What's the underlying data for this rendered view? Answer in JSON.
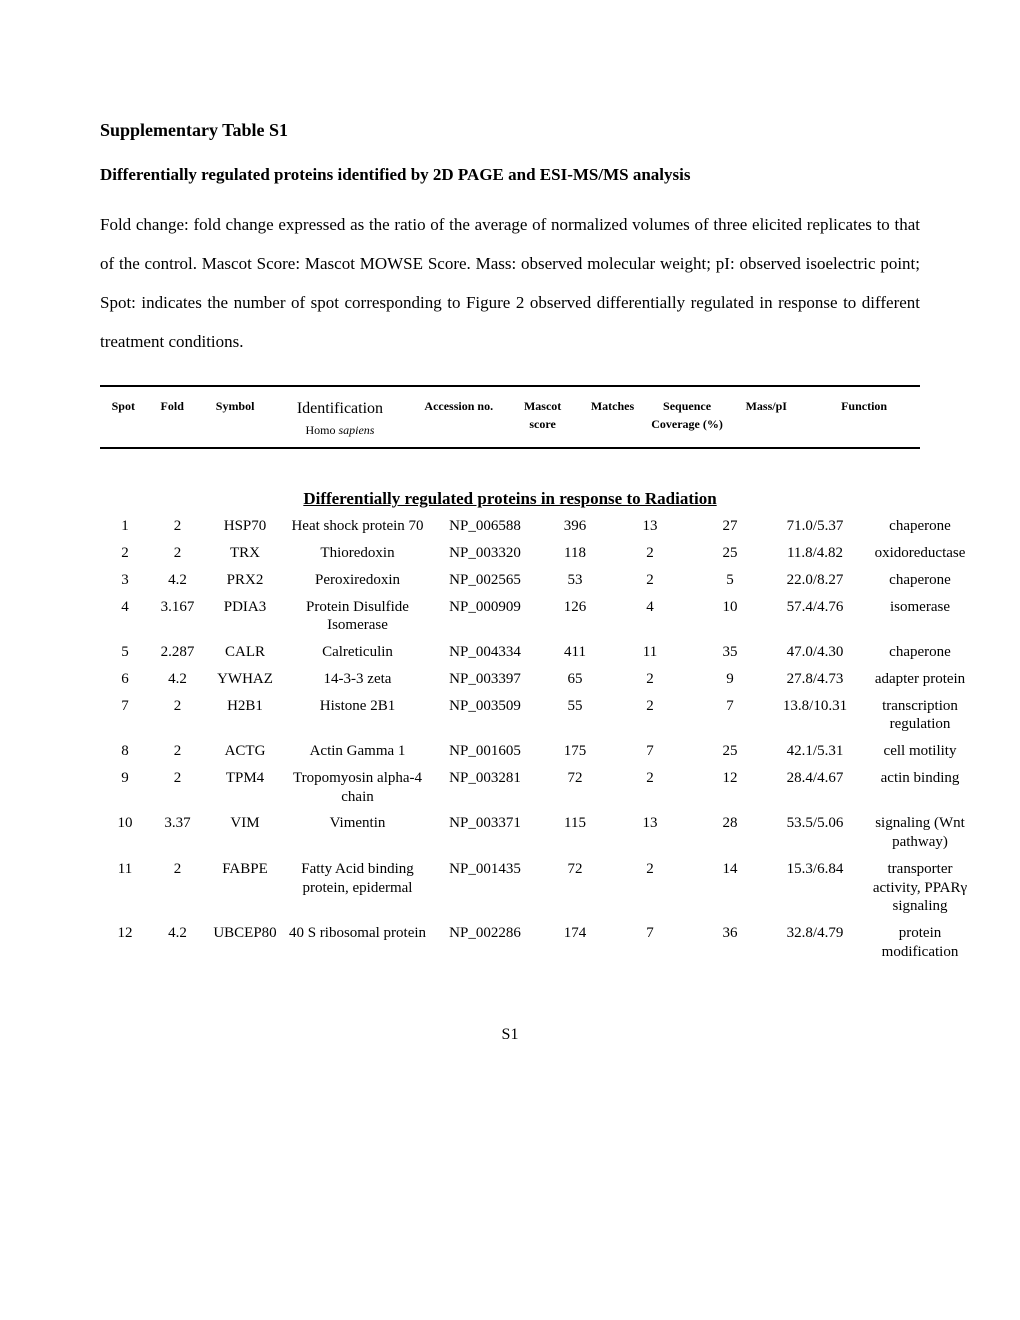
{
  "title": "Supplementary Table S1",
  "subtitle": "Differentially regulated proteins identified by 2D PAGE and ESI-MS/MS analysis",
  "description": "Fold change: fold change expressed as the ratio of the average of normalized volumes of three elicited replicates to that of the control. Mascot Score: Mascot MOWSE Score. Mass: observed molecular weight; pI: observed isoelectric point; Spot: indicates the number of spot corresponding to Figure 2 observed differentially regulated in response to different treatment conditions.",
  "columns": {
    "spot": "Spot",
    "fold": "Fold",
    "symbol": "Symbol",
    "identification": "Identification",
    "id_sub": "Homo sapiens",
    "accession": "Accession no.",
    "mascot": "Mascot score",
    "matches": "Matches",
    "seqcov": "Sequence Coverage (%)",
    "masspi": "Mass/pI",
    "function": "Function"
  },
  "section_header": "Differentially regulated proteins in response to Radiation",
  "rows": [
    {
      "spot": "1",
      "fold": "2",
      "symbol": "HSP70",
      "id": "Heat shock protein 70",
      "acc": "NP_006588",
      "mascot": "396",
      "matches": "13",
      "seq": "27",
      "mpi": "71.0/5.37",
      "func": "chaperone"
    },
    {
      "spot": "2",
      "fold": "2",
      "symbol": "TRX",
      "id": "Thioredoxin",
      "acc": "NP_003320",
      "mascot": "118",
      "matches": "2",
      "seq": "25",
      "mpi": "11.8/4.82",
      "func": "oxidoreductase"
    },
    {
      "spot": "3",
      "fold": "4.2",
      "symbol": "PRX2",
      "id": "Peroxiredoxin",
      "acc": "NP_002565",
      "mascot": "53",
      "matches": "2",
      "seq": "5",
      "mpi": "22.0/8.27",
      "func": "chaperone"
    },
    {
      "spot": "4",
      "fold": "3.167",
      "symbol": "PDIA3",
      "id": "Protein Disulfide Isomerase",
      "acc": "NP_000909",
      "mascot": "126",
      "matches": "4",
      "seq": "10",
      "mpi": "57.4/4.76",
      "func": "isomerase"
    },
    {
      "spot": "5",
      "fold": "2.287",
      "symbol": "CALR",
      "id": "Calreticulin",
      "acc": "NP_004334",
      "mascot": "411",
      "matches": "11",
      "seq": "35",
      "mpi": "47.0/4.30",
      "func": "chaperone"
    },
    {
      "spot": "6",
      "fold": "4.2",
      "symbol": "YWHAZ",
      "id": "14-3-3 zeta",
      "acc": "NP_003397",
      "mascot": "65",
      "matches": "2",
      "seq": "9",
      "mpi": "27.8/4.73",
      "func": "adapter protein"
    },
    {
      "spot": "7",
      "fold": "2",
      "symbol": "H2B1",
      "id": "Histone 2B1",
      "acc": "NP_003509",
      "mascot": "55",
      "matches": "2",
      "seq": "7",
      "mpi": "13.8/10.31",
      "func": "transcription regulation"
    },
    {
      "spot": "8",
      "fold": "2",
      "symbol": "ACTG",
      "id": "Actin Gamma 1",
      "acc": "NP_001605",
      "mascot": "175",
      "matches": "7",
      "seq": "25",
      "mpi": "42.1/5.31",
      "func": "cell motility"
    },
    {
      "spot": "9",
      "fold": "2",
      "symbol": "TPM4",
      "id": "Tropomyosin alpha-4 chain",
      "acc": "NP_003281",
      "mascot": "72",
      "matches": "2",
      "seq": "12",
      "mpi": "28.4/4.67",
      "func": "actin binding"
    },
    {
      "spot": "10",
      "fold": "3.37",
      "symbol": "VIM",
      "id": "Vimentin",
      "acc": "NP_003371",
      "mascot": "115",
      "matches": "13",
      "seq": "28",
      "mpi": "53.5/5.06",
      "func": "signaling (Wnt pathway)"
    },
    {
      "spot": "11",
      "fold": "2",
      "symbol": "FABPE",
      "id": "Fatty Acid binding protein, epidermal",
      "acc": "NP_001435",
      "mascot": "72",
      "matches": "2",
      "seq": "14",
      "mpi": "15.3/6.84",
      "func": "transporter activity, PPARγ signaling"
    },
    {
      "spot": "12",
      "fold": "4.2",
      "symbol": "UBCEP80",
      "id": "40 S ribosomal protein",
      "acc": "NP_002286",
      "mascot": "174",
      "matches": "7",
      "seq": "36",
      "mpi": "32.8/4.79",
      "func": "protein modification"
    }
  ],
  "col_widths": {
    "spot": 50,
    "fold": 55,
    "symbol": 80,
    "id": 145,
    "acc": 110,
    "mascot": 70,
    "matches": 80,
    "seqcov": 80,
    "mass": 90,
    "func": 120
  },
  "page_number": "S1"
}
